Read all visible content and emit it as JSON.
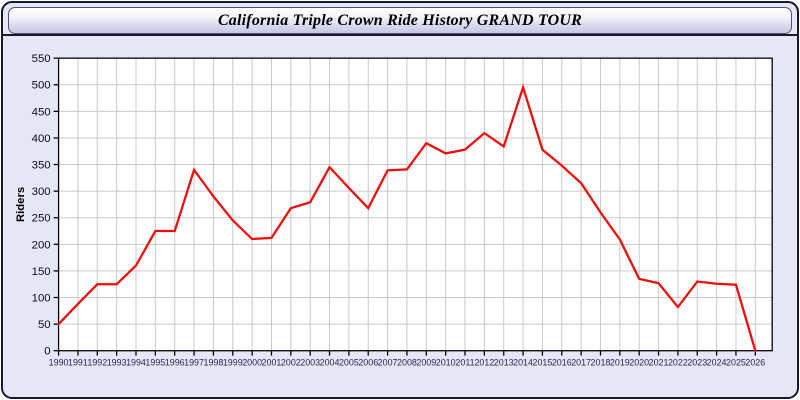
{
  "window": {
    "title": "California Triple Crown Ride History GRAND TOUR"
  },
  "chart_data": {
    "type": "line",
    "title": "California Triple Crown Ride History GRAND TOUR",
    "xlabel": "",
    "ylabel": "Riders",
    "ylim": [
      0,
      550
    ],
    "ytick_step": 50,
    "xlim": [
      1990,
      2026
    ],
    "grid": true,
    "legend": "none",
    "x": [
      1990,
      1991,
      1992,
      1993,
      1994,
      1995,
      1996,
      1997,
      1998,
      1999,
      2000,
      2001,
      2002,
      2003,
      2004,
      2005,
      2006,
      2007,
      2008,
      2009,
      2010,
      2011,
      2012,
      2013,
      2014,
      2015,
      2016,
      2017,
      2018,
      2019,
      2020,
      2021,
      2022,
      2023,
      2024,
      2025,
      2026
    ],
    "series": [
      {
        "name": "Riders",
        "values": [
          50,
          88,
          125,
          125,
          160,
          225,
          225,
          340,
          290,
          245,
          210,
          212,
          268,
          279,
          345,
          306,
          268,
          339,
          341,
          390,
          371,
          378,
          409,
          384,
          495,
          378,
          348,
          315,
          260,
          209,
          135,
          127,
          82,
          130,
          126,
          124,
          0
        ]
      }
    ],
    "colors": {
      "line": "#ee0d0d",
      "grid": "#c9c9c9",
      "plot_background": "#ffffff",
      "plot_border": "#000000",
      "window_background": "#e6e6f7",
      "x_tick_label": "#26265a",
      "y_tick_label": "#0a0a1a"
    }
  }
}
